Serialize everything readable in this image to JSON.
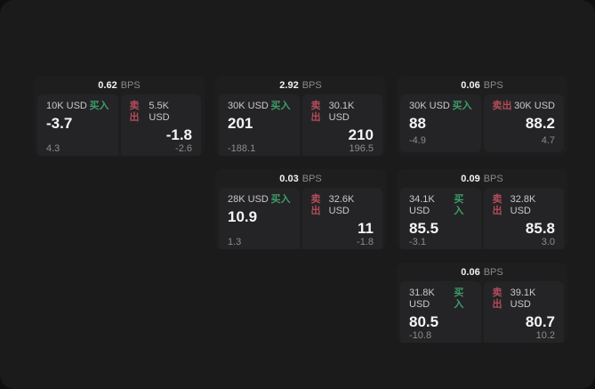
{
  "labels": {
    "bps_unit": "BPS",
    "buy": "买入",
    "sell": "卖出"
  },
  "colors": {
    "page_bg": "#0f0f0f",
    "window_bg": "#1b1b1c",
    "card_bg": "#1e1e1f",
    "panel_bg": "#242427",
    "buy_green": "#3E9D68",
    "sell_red": "#B34C58"
  },
  "cards": [
    {
      "bps": "0.62",
      "grid": {
        "col": 1,
        "row": 1
      },
      "buy": {
        "size": "10K USD",
        "value": "-3.7",
        "sub": "4.3"
      },
      "sell": {
        "size": "5.5K USD",
        "value": "-1.8",
        "sub": "-2.6"
      }
    },
    {
      "bps": "2.92",
      "grid": {
        "col": 2,
        "row": 1
      },
      "buy": {
        "size": "30K USD",
        "value": "201",
        "sub": "-188.1"
      },
      "sell": {
        "size": "30.1K USD",
        "value": "210",
        "sub": "196.5"
      }
    },
    {
      "bps": "0.06",
      "grid": {
        "col": 3,
        "row": 1
      },
      "buy": {
        "size": "30K USD",
        "value": "88",
        "sub": "-4.9"
      },
      "sell": {
        "size": "30K USD",
        "value": "88.2",
        "sub": "4.7"
      }
    },
    {
      "bps": "0.03",
      "grid": {
        "col": 2,
        "row": 2
      },
      "buy": {
        "size": "28K USD",
        "value": "10.9",
        "sub": "1.3"
      },
      "sell": {
        "size": "32.6K USD",
        "value": "11",
        "sub": "-1.8"
      }
    },
    {
      "bps": "0.09",
      "grid": {
        "col": 3,
        "row": 2
      },
      "buy": {
        "size": "34.1K USD",
        "value": "85.5",
        "sub": "-3.1"
      },
      "sell": {
        "size": "32.8K USD",
        "value": "85.8",
        "sub": "3.0"
      }
    },
    {
      "bps": "0.06",
      "grid": {
        "col": 3,
        "row": 3
      },
      "buy": {
        "size": "31.8K USD",
        "value": "80.5",
        "sub": "-10.8"
      },
      "sell": {
        "size": "39.1K USD",
        "value": "80.7",
        "sub": "10.2"
      }
    }
  ]
}
